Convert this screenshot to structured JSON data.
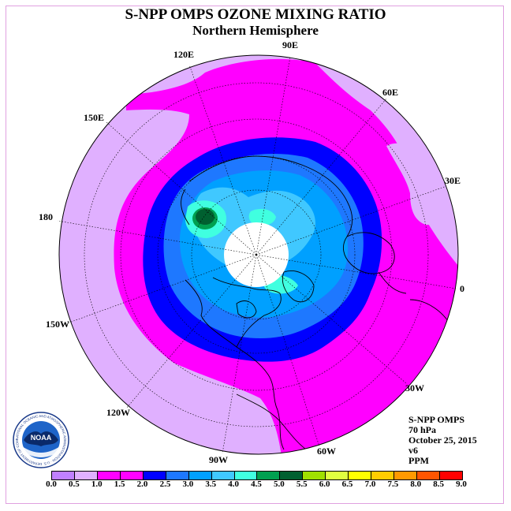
{
  "header": {
    "title": "S-NPP OMPS OZONE MIXING RATIO",
    "subtitle": "Northern Hemisphere"
  },
  "longitude_labels": [
    {
      "id": "lon-90e",
      "text": "90E"
    },
    {
      "id": "lon-60e",
      "text": "60E"
    },
    {
      "id": "lon-30e",
      "text": "30E"
    },
    {
      "id": "lon-0",
      "text": "0"
    },
    {
      "id": "lon-30w",
      "text": "30W"
    },
    {
      "id": "lon-60w",
      "text": "60W"
    },
    {
      "id": "lon-90w",
      "text": "90W"
    },
    {
      "id": "lon-120w",
      "text": "120W"
    },
    {
      "id": "lon-150w",
      "text": "150W"
    },
    {
      "id": "lon-180",
      "text": "180"
    },
    {
      "id": "lon-150e",
      "text": "150E"
    },
    {
      "id": "lon-120e",
      "text": "120E"
    }
  ],
  "info": {
    "instrument": "S-NPP OMPS",
    "level": "70 hPa",
    "date": "October 25, 2015",
    "version": "v6",
    "units": "PPM"
  },
  "logo": {
    "text": "NOAA",
    "ring_text": "NATIONAL OCEANIC AND ATMOSPHERIC ADMINISTRATION · U.S. DEPARTMENT OF COMMERCE",
    "icon": "noaa-logo-icon"
  },
  "colorbar": {
    "ticks": [
      "0.0",
      "0.5",
      "1.0",
      "1.5",
      "2.0",
      "2.5",
      "3.0",
      "3.5",
      "4.0",
      "4.5",
      "5.0",
      "5.5",
      "6.0",
      "6.5",
      "7.0",
      "7.5",
      "8.0",
      "8.5",
      "9.0"
    ],
    "colors": [
      "#c080ff",
      "#e0b0ff",
      "#ff00ff",
      "#ff00ff",
      "#0000ff",
      "#1e78ff",
      "#00a0ff",
      "#40c8ff",
      "#40ffe0",
      "#00a050",
      "#006030",
      "#a0e000",
      "#e0ff40",
      "#ffff00",
      "#ffcc00",
      "#ff9900",
      "#ff5500",
      "#ff0000",
      "#8b4513"
    ]
  },
  "map_colors": {
    "lavender": "#e0b0ff",
    "magenta": "#ff00ff",
    "blue": "#0000ff",
    "mid_blue": "#1e78ff",
    "sky_blue": "#00a0ff",
    "light_blue": "#40c8ff",
    "cyan": "#40ffe0",
    "green": "#00a050",
    "dark_green": "#006030",
    "polar_cap": "#ffffff"
  }
}
